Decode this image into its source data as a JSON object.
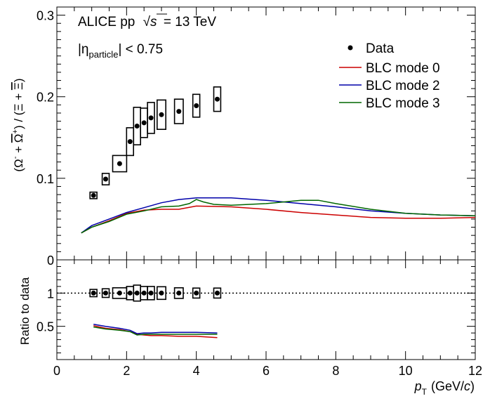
{
  "chart_data": [
    {
      "type": "scatter",
      "panel": "top",
      "annotations": {
        "experiment": "ALICE pp",
        "sqrt_s_symbol": "√",
        "sqrt_s_var": "s",
        "energy": "= 13 TeV",
        "eta_pre": "|η",
        "eta_sub": "particle",
        "eta_post": "| < 0.75"
      },
      "ylabel": {
        "omega_minus": "(Ω",
        "minus_sup": "-",
        "plus_text": " + ",
        "omega_plus": "Ω",
        "plus_sup": "+",
        "ratio_text": ") / (Ξ + ",
        "xi_bar": "Ξ",
        "close": ")"
      },
      "xlim": [
        0,
        12
      ],
      "ylim": [
        0,
        0.31
      ],
      "yticks": [
        {
          "v": 0,
          "label": "0"
        },
        {
          "v": 0.1,
          "label": "0.1"
        },
        {
          "v": 0.2,
          "label": "0.2"
        },
        {
          "v": 0.3,
          "label": "0.3"
        }
      ],
      "legend": {
        "placement": "top-right",
        "entries": [
          {
            "label": "Data",
            "color": "#000000",
            "marker": "circle"
          },
          {
            "label": "BLC mode 0",
            "color": "#cc0000",
            "marker": "line"
          },
          {
            "label": "BLC mode 2",
            "color": "#0000aa",
            "marker": "line"
          },
          {
            "label": "BLC mode 3",
            "color": "#006600",
            "marker": "line"
          }
        ]
      },
      "data": {
        "name": "Data",
        "x": [
          1.05,
          1.4,
          1.8,
          2.1,
          2.3,
          2.5,
          2.7,
          3.0,
          3.5,
          4.0,
          4.6
        ],
        "y": [
          0.079,
          0.099,
          0.118,
          0.145,
          0.164,
          0.168,
          0.174,
          0.178,
          0.182,
          0.189,
          0.197
        ],
        "xerr": [
          0.1,
          0.1,
          0.2,
          0.1,
          0.1,
          0.1,
          0.1,
          0.125,
          0.125,
          0.1,
          0.1
        ],
        "syst": [
          0.004,
          0.007,
          0.01,
          0.017,
          0.023,
          0.018,
          0.019,
          0.018,
          0.015,
          0.014,
          0.015
        ]
      },
      "series": [
        {
          "name": "BLC mode 0",
          "color": "#cc0000",
          "x": [
            0.7,
            1.0,
            1.5,
            2.0,
            2.5,
            3.0,
            3.5,
            4.0,
            5.0,
            6.0,
            7.0,
            8.0,
            9.0,
            10.0,
            11.0,
            12.0
          ],
          "y": [
            0.033,
            0.04,
            0.048,
            0.057,
            0.061,
            0.062,
            0.062,
            0.066,
            0.065,
            0.062,
            0.058,
            0.055,
            0.052,
            0.051,
            0.051,
            0.052
          ]
        },
        {
          "name": "BLC mode 2",
          "color": "#0000aa",
          "x": [
            0.7,
            1.0,
            1.5,
            2.0,
            2.5,
            3.0,
            3.5,
            4.0,
            5.0,
            6.0,
            7.0,
            8.0,
            9.0,
            10.0,
            11.0,
            12.0
          ],
          "y": [
            0.033,
            0.042,
            0.05,
            0.058,
            0.064,
            0.07,
            0.074,
            0.076,
            0.076,
            0.073,
            0.069,
            0.065,
            0.06,
            0.057,
            0.055,
            0.054
          ]
        },
        {
          "name": "BLC mode 3",
          "color": "#006600",
          "x": [
            0.7,
            1.0,
            1.5,
            2.0,
            2.5,
            3.0,
            3.5,
            3.8,
            4.0,
            4.2,
            4.5,
            5.0,
            6.0,
            7.0,
            7.5,
            8.0,
            9.0,
            10.0,
            11.0,
            12.0
          ],
          "y": [
            0.033,
            0.04,
            0.047,
            0.056,
            0.06,
            0.065,
            0.066,
            0.069,
            0.074,
            0.071,
            0.068,
            0.067,
            0.069,
            0.073,
            0.073,
            0.069,
            0.062,
            0.057,
            0.055,
            0.054
          ]
        }
      ]
    },
    {
      "type": "scatter",
      "panel": "bottom",
      "ylabel": "Ratio to data",
      "xlabel_var": "p",
      "xlabel_sub": "T",
      "xlabel_unit_pre": "(GeV/",
      "xlabel_unit_c": "c",
      "xlabel_unit_post": ")",
      "xlim": [
        0,
        12
      ],
      "ylim": [
        0,
        1.5
      ],
      "xticks": [
        {
          "v": 0,
          "label": "0"
        },
        {
          "v": 2,
          "label": "2"
        },
        {
          "v": 4,
          "label": "4"
        },
        {
          "v": 6,
          "label": "6"
        },
        {
          "v": 8,
          "label": "8"
        },
        {
          "v": 10,
          "label": "10"
        },
        {
          "v": 12,
          "label": "12"
        }
      ],
      "yticks": [
        {
          "v": 0.5,
          "label": "0.5"
        },
        {
          "v": 1,
          "label": "1"
        }
      ],
      "reference_line": 1,
      "data": {
        "x": [
          1.05,
          1.4,
          1.8,
          2.1,
          2.3,
          2.5,
          2.7,
          3.0,
          3.5,
          4.0,
          4.6
        ],
        "y": [
          1,
          1,
          1,
          1,
          1,
          1,
          1,
          1,
          1,
          1,
          1
        ],
        "xerr": [
          0.1,
          0.1,
          0.2,
          0.1,
          0.1,
          0.1,
          0.1,
          0.125,
          0.125,
          0.1,
          0.1
        ],
        "syst": [
          0.055,
          0.065,
          0.08,
          0.1,
          0.12,
          0.1,
          0.1,
          0.095,
          0.08,
          0.075,
          0.075
        ]
      },
      "series": [
        {
          "name": "BLC mode 0",
          "color": "#cc0000",
          "x": [
            1.05,
            1.4,
            1.8,
            2.1,
            2.3,
            2.5,
            2.7,
            3.0,
            3.5,
            4.0,
            4.6
          ],
          "y": [
            0.51,
            0.47,
            0.45,
            0.42,
            0.38,
            0.37,
            0.36,
            0.36,
            0.35,
            0.35,
            0.33
          ]
        },
        {
          "name": "BLC mode 2",
          "color": "#0000aa",
          "x": [
            1.05,
            1.4,
            1.8,
            2.1,
            2.3,
            2.5,
            2.7,
            3.0,
            3.5,
            4.0,
            4.6
          ],
          "y": [
            0.53,
            0.5,
            0.47,
            0.44,
            0.39,
            0.4,
            0.4,
            0.41,
            0.41,
            0.41,
            0.4
          ]
        },
        {
          "name": "BLC mode 3",
          "color": "#006600",
          "x": [
            1.05,
            1.4,
            1.8,
            2.1,
            2.3,
            2.5,
            2.7,
            3.0,
            3.5,
            4.0,
            4.6
          ],
          "y": [
            0.49,
            0.46,
            0.44,
            0.42,
            0.37,
            0.38,
            0.38,
            0.38,
            0.38,
            0.38,
            0.38
          ]
        }
      ]
    }
  ]
}
